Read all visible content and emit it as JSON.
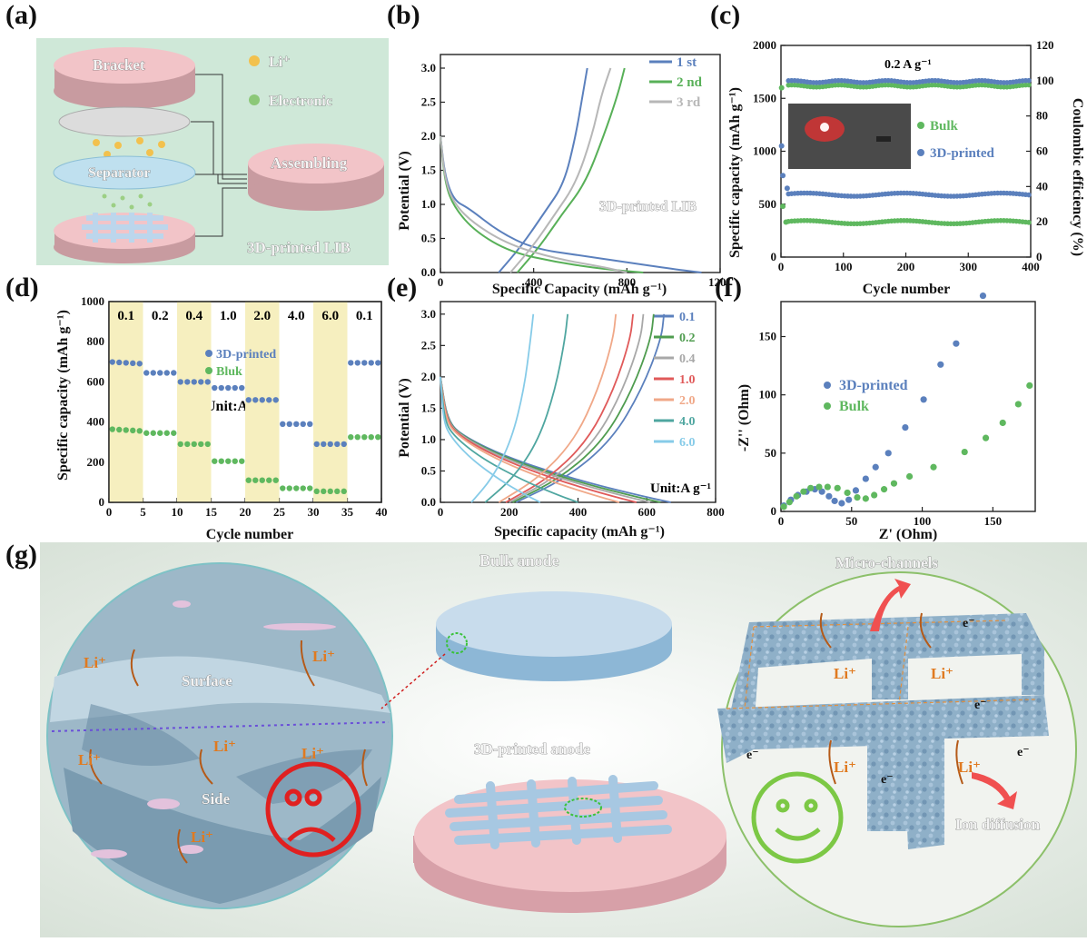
{
  "panel_labels": [
    "(a)",
    "(b)",
    "(c)",
    "(d)",
    "(e)",
    "(f)",
    "(g)"
  ],
  "panel_a": {
    "labels": {
      "bracket": "Bracket",
      "separator": "Separator",
      "assembling": "Assembling",
      "li": "Li⁺",
      "electronic": "Electronic",
      "lib": "3D-printed LIB"
    },
    "colors": {
      "bg": "#cfe8d8",
      "pink": "#f2c4c8",
      "blue": "#bfe0ef"
    }
  },
  "chart_data": [
    {
      "id": "b",
      "type": "line",
      "xlabel": "Specific Capacity (mAh g⁻¹)",
      "ylabel": "Potential (V)",
      "xlim": [
        0,
        1200
      ],
      "ylim": [
        0,
        3.2
      ],
      "xticks": [
        0,
        400,
        800,
        1200
      ],
      "yticks": [
        0,
        0.5,
        1.0,
        1.5,
        2.0,
        2.5,
        3.0
      ],
      "annotation": "3D-printed LIB",
      "legend_position": "top-right",
      "series": [
        {
          "name": "1 st",
          "color": "#5b80bd",
          "discharge": [
            [
              0,
              2.0
            ],
            [
              20,
              1.4
            ],
            [
              60,
              1.05
            ],
            [
              120,
              0.95
            ],
            [
              250,
              0.6
            ],
            [
              400,
              0.35
            ],
            [
              600,
              0.25
            ],
            [
              800,
              0.15
            ],
            [
              1000,
              0.05
            ],
            [
              1120,
              0
            ]
          ],
          "charge": [
            [
              250,
              0
            ],
            [
              350,
              0.4
            ],
            [
              450,
              0.9
            ],
            [
              530,
              1.3
            ],
            [
              580,
              2.0
            ],
            [
              610,
              2.6
            ],
            [
              630,
              3.0
            ]
          ]
        },
        {
          "name": "2 nd",
          "color": "#58b058",
          "discharge": [
            [
              0,
              2.0
            ],
            [
              20,
              1.3
            ],
            [
              60,
              0.95
            ],
            [
              150,
              0.6
            ],
            [
              300,
              0.3
            ],
            [
              500,
              0.15
            ],
            [
              700,
              0.05
            ],
            [
              870,
              0
            ]
          ],
          "charge": [
            [
              330,
              0
            ],
            [
              430,
              0.4
            ],
            [
              520,
              0.85
            ],
            [
              620,
              1.3
            ],
            [
              700,
              2.0
            ],
            [
              760,
              2.6
            ],
            [
              790,
              3.0
            ]
          ]
        },
        {
          "name": "3 rd",
          "color": "#b7b7b7",
          "discharge": [
            [
              0,
              2.0
            ],
            [
              20,
              1.35
            ],
            [
              60,
              1.0
            ],
            [
              150,
              0.7
            ],
            [
              300,
              0.4
            ],
            [
              500,
              0.2
            ],
            [
              700,
              0.08
            ],
            [
              800,
              0
            ]
          ],
          "charge": [
            [
              300,
              0
            ],
            [
              400,
              0.4
            ],
            [
              490,
              0.85
            ],
            [
              580,
              1.3
            ],
            [
              650,
              2.0
            ],
            [
              690,
              2.6
            ],
            [
              730,
              3.0
            ]
          ]
        }
      ]
    },
    {
      "id": "c",
      "type": "scatter",
      "xlabel": "Cycle number",
      "ylabel": "Specific capacity (mAh g⁻¹)",
      "y2label": "Coulombic efficiency (%)",
      "xlim": [
        0,
        400
      ],
      "ylim": [
        0,
        2000
      ],
      "y2lim": [
        0,
        120
      ],
      "xticks": [
        0,
        100,
        200,
        300,
        400
      ],
      "yticks": [
        0,
        500,
        1000,
        1500,
        2000
      ],
      "y2ticks": [
        0,
        20,
        40,
        60,
        80,
        100,
        120
      ],
      "annotation": "0.2 A g⁻¹",
      "series": [
        {
          "name": "Bulk",
          "color": "#5fb85f",
          "capacity_start": [
            [
              1,
              1600
            ],
            [
              3,
              480
            ],
            [
              8,
              330
            ]
          ],
          "capacity_level": 330,
          "ce": 97
        },
        {
          "name": "3D-printed",
          "color": "#5b80bd",
          "capacity_start": [
            [
              1,
              1050
            ],
            [
              3,
              770
            ],
            [
              10,
              650
            ]
          ],
          "capacity_level": 590,
          "ce": 99.5
        }
      ]
    },
    {
      "id": "d",
      "type": "scatter",
      "xlabel": "Cycle number",
      "ylabel": "Specific capacity (mAh g⁻¹)",
      "xlim": [
        0,
        40
      ],
      "ylim": [
        0,
        1000
      ],
      "xticks": [
        0,
        5,
        10,
        15,
        20,
        25,
        30,
        35,
        40
      ],
      "yticks": [
        0,
        200,
        400,
        600,
        800,
        1000
      ],
      "rates": [
        "0.1",
        "0.2",
        "0.4",
        "1.0",
        "2.0",
        "4.0",
        "6.0",
        "0.1"
      ],
      "unit": "Unit:A g⁻¹",
      "series": [
        {
          "name": "3D-printed",
          "color": "#5b80bd",
          "values": [
            695,
            645,
            600,
            570,
            510,
            390,
            290,
            695
          ]
        },
        {
          "name": "Bluk",
          "color": "#5fb85f",
          "values": [
            360,
            345,
            290,
            205,
            110,
            70,
            55,
            325
          ]
        }
      ]
    },
    {
      "id": "e",
      "type": "line",
      "xlabel": "Specific capacity (mAh g⁻¹)",
      "ylabel": "Potential (V)",
      "xlim": [
        0,
        800
      ],
      "ylim": [
        0,
        3.2
      ],
      "xticks": [
        0,
        200,
        400,
        600,
        800
      ],
      "yticks": [
        0,
        0.5,
        1.0,
        1.5,
        2.0,
        2.5,
        3.0
      ],
      "unit": "Unit:A g⁻¹",
      "series": [
        {
          "name": "0.1",
          "color": "#5b80bd",
          "discharge_end": 670,
          "charge_start": 220,
          "charge_end": 650
        },
        {
          "name": "0.2",
          "color": "#4f9c4f",
          "discharge_end": 640,
          "charge_start": 210,
          "charge_end": 620
        },
        {
          "name": "0.4",
          "color": "#a8a8a8",
          "discharge_end": 610,
          "charge_start": 200,
          "charge_end": 590
        },
        {
          "name": "1.0",
          "color": "#e05a5a",
          "discharge_end": 570,
          "charge_start": 190,
          "charge_end": 560
        },
        {
          "name": "2.0",
          "color": "#f0a888",
          "discharge_end": 520,
          "charge_start": 170,
          "charge_end": 510
        },
        {
          "name": "4.0",
          "color": "#4fa6a0",
          "discharge_end": 400,
          "charge_start": 130,
          "charge_end": 370
        },
        {
          "name": "6.0",
          "color": "#86cbe8",
          "discharge_end": 290,
          "charge_start": 90,
          "charge_end": 270
        }
      ]
    },
    {
      "id": "f",
      "type": "scatter",
      "xlabel": "Z' (Ohm)",
      "ylabel": "-Z'' (Ohm)",
      "xlim": [
        0,
        180
      ],
      "ylim": [
        0,
        180
      ],
      "xticks": [
        0,
        50,
        100,
        150
      ],
      "yticks": [
        0,
        50,
        100,
        150
      ],
      "series": [
        {
          "name": "3D-printed",
          "color": "#5b80bd",
          "points": [
            [
              2,
              5
            ],
            [
              7,
              10
            ],
            [
              12,
              14
            ],
            [
              18,
              17
            ],
            [
              24,
              19
            ],
            [
              29,
              17
            ],
            [
              34,
              13
            ],
            [
              38,
              9
            ],
            [
              43,
              7
            ],
            [
              48,
              10
            ],
            [
              53,
              18
            ],
            [
              60,
              28
            ],
            [
              67,
              38
            ],
            [
              76,
              50
            ],
            [
              88,
              72
            ],
            [
              101,
              96
            ],
            [
              113,
              126
            ],
            [
              124,
              144
            ],
            [
              143,
              185
            ]
          ]
        },
        {
          "name": "Bulk",
          "color": "#5fb85f",
          "points": [
            [
              2,
              4
            ],
            [
              6,
              8
            ],
            [
              11,
              13
            ],
            [
              16,
              17
            ],
            [
              21,
              20
            ],
            [
              27,
              21
            ],
            [
              33,
              21
            ],
            [
              40,
              20
            ],
            [
              47,
              16
            ],
            [
              54,
              12
            ],
            [
              60,
              11
            ],
            [
              66,
              14
            ],
            [
              73,
              19
            ],
            [
              80,
              24
            ],
            [
              91,
              30
            ],
            [
              108,
              38
            ],
            [
              130,
              51
            ],
            [
              145,
              63
            ],
            [
              157,
              76
            ],
            [
              168,
              92
            ],
            [
              176,
              108
            ]
          ]
        }
      ]
    }
  ],
  "panel_g": {
    "labels": {
      "bulk_anode": "Bulk  anode",
      "printed_anode": "3D-printed anode",
      "micro": "Micro-channels",
      "ion": "Ion diffusion",
      "surface": "Surface",
      "side": "Side",
      "li": "Li⁺",
      "e": "e⁻"
    },
    "colors": {
      "bg": "#dde6dd",
      "orange": "#e07a20",
      "blue": "#7aa2c8",
      "green": "#7cc845",
      "red": "#e02020"
    }
  }
}
